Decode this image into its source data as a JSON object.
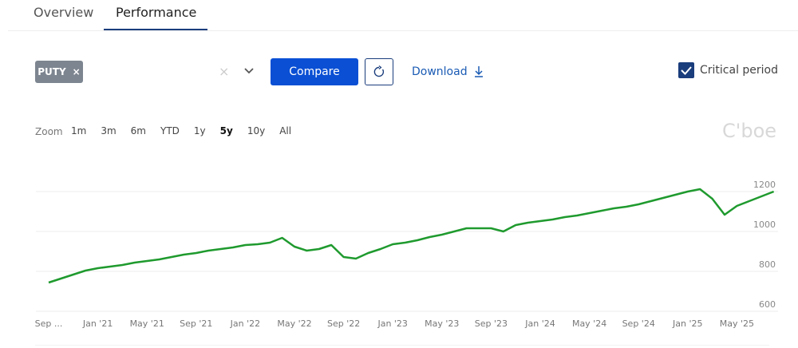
{
  "tabs": [
    "Overview",
    "Performance"
  ],
  "controls": {
    "chip": "PUTY",
    "chip_remove": "×",
    "clear": "×",
    "compare": "Compare",
    "download": "Download",
    "critical_period": "Critical period"
  },
  "zoom": {
    "label": "Zoom",
    "options": [
      "1m",
      "3m",
      "6m",
      "YTD",
      "1y",
      "5y",
      "10y",
      "All"
    ],
    "active": "5y"
  },
  "watermark": "C'boe",
  "chart_data": {
    "type": "line",
    "x": [
      "2020-09",
      "2020-10",
      "2020-11",
      "2020-12",
      "2021-01",
      "2021-02",
      "2021-03",
      "2021-04",
      "2021-05",
      "2021-06",
      "2021-07",
      "2021-08",
      "2021-09",
      "2021-10",
      "2021-11",
      "2021-12",
      "2022-01",
      "2022-02",
      "2022-03",
      "2022-04",
      "2022-05",
      "2022-06",
      "2022-07",
      "2022-08",
      "2022-09",
      "2022-10",
      "2022-11",
      "2022-12",
      "2023-01",
      "2023-02",
      "2023-03",
      "2023-04",
      "2023-05",
      "2023-06",
      "2023-07",
      "2023-08",
      "2023-09",
      "2023-10",
      "2023-11",
      "2023-12",
      "2024-01",
      "2024-02",
      "2024-03",
      "2024-04",
      "2024-05",
      "2024-06",
      "2024-07",
      "2024-08",
      "2024-09",
      "2024-10",
      "2024-11",
      "2024-12",
      "2025-01",
      "2025-02",
      "2025-03",
      "2025-04",
      "2025-05",
      "2025-06",
      "2025-07",
      "2025-08"
    ],
    "series": [
      {
        "name": "PUTY",
        "color": "#1f9a2e",
        "values": [
          744,
          764,
          784,
          804,
          816,
          824,
          832,
          844,
          852,
          860,
          872,
          884,
          892,
          904,
          912,
          920,
          932,
          936,
          944,
          968,
          924,
          904,
          912,
          932,
          872,
          864,
          892,
          912,
          936,
          944,
          956,
          972,
          984,
          1000,
          1016,
          1016,
          1016,
          1000,
          1032,
          1044,
          1052,
          1060,
          1072,
          1080,
          1092,
          1104,
          1116,
          1124,
          1136,
          1152,
          1168,
          1184,
          1200,
          1212,
          1164,
          1084,
          1128,
          1152,
          1176,
          1200
        ]
      }
    ],
    "xticks": [
      {
        "value": "2020-09",
        "label": "Sep ..."
      },
      {
        "value": "2021-01",
        "label": "Jan '21"
      },
      {
        "value": "2021-05",
        "label": "May '21"
      },
      {
        "value": "2021-09",
        "label": "Sep '21"
      },
      {
        "value": "2022-01",
        "label": "Jan '22"
      },
      {
        "value": "2022-05",
        "label": "May '22"
      },
      {
        "value": "2022-09",
        "label": "Sep '22"
      },
      {
        "value": "2023-01",
        "label": "Jan '23"
      },
      {
        "value": "2023-05",
        "label": "May '23"
      },
      {
        "value": "2023-09",
        "label": "Sep '23"
      },
      {
        "value": "2024-01",
        "label": "Jan '24"
      },
      {
        "value": "2024-05",
        "label": "May '24"
      },
      {
        "value": "2024-09",
        "label": "Sep '24"
      },
      {
        "value": "2025-01",
        "label": "Jan '25"
      },
      {
        "value": "2025-05",
        "label": "May '25"
      }
    ],
    "ylim": [
      580,
      1400
    ],
    "yticks": [
      600,
      800,
      1000,
      1200
    ],
    "grid": true
  }
}
